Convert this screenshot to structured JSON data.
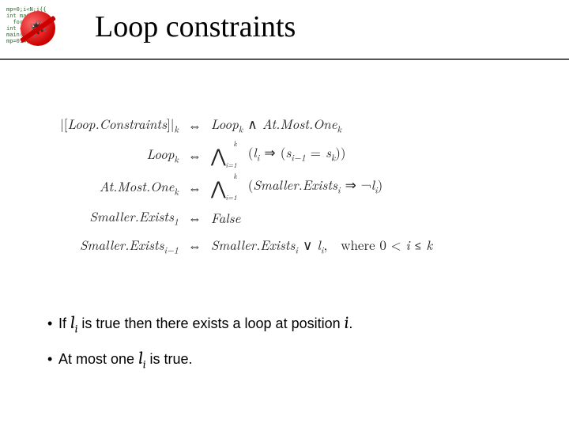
{
  "title": "Loop constraints",
  "title_fontsize": 38,
  "title_font": "Comic Sans MS",
  "underline_color": "#555555",
  "background_color": "#ffffff",
  "logo": {
    "code_color": "#2a6b2a",
    "badge_color": "#cc0000"
  },
  "formulas": {
    "font_size": 17,
    "text_color": "#222222",
    "iff_symbol": "⇔",
    "rows": [
      {
        "lhs": "|[Loop.Constraints]|_k",
        "rhs": "Loop_k ∧ At.Most.One_k"
      },
      {
        "lhs": "Loop_k",
        "rhs": "⋀_{i=1}^{k} (l_i ⇒ (s_{i−1} = s_k))"
      },
      {
        "lhs": "At.Most.One_k",
        "rhs": "⋀_{i=1}^{k} (Smaller.Exists_i ⇒ ¬l_i)"
      },
      {
        "lhs": "Smaller.Exists_1",
        "rhs": "False"
      },
      {
        "lhs": "Smaller.Exists_{i−1}",
        "rhs": "Smaller.Exists_i ∨ l_i,  where 0 < i ≤ k"
      }
    ]
  },
  "bullets": {
    "font_size": 18,
    "font_family": "Verdana",
    "items": [
      {
        "pre": "If ",
        "math": "l_i",
        "mid": " is true then there exists a loop at position ",
        "math2": "i",
        "post": "."
      },
      {
        "pre": "At most one ",
        "math": "l_i",
        "mid": " is true.",
        "math2": "",
        "post": ""
      }
    ]
  }
}
